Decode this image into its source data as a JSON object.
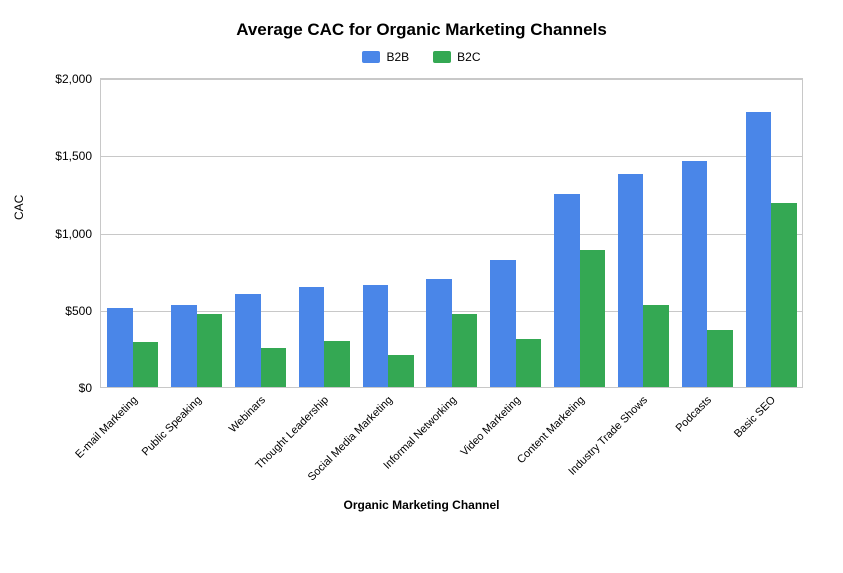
{
  "chart": {
    "type": "bar",
    "title": "Average CAC for Organic Marketing Channels",
    "title_fontsize": 17,
    "xlabel": "Organic Marketing Channel",
    "ylabel": "CAC",
    "label_fontsize": 12,
    "ylim": [
      0,
      2000
    ],
    "ytick_step": 500,
    "yticks": [
      "$0",
      "$500",
      "$1,000",
      "$1,500",
      "$2,000"
    ],
    "categories": [
      "E-mail Marketing",
      "Public Speaking",
      "Webinars",
      "Thought Leadership",
      "Social Media Marketing",
      "Informal Networking",
      "Video Marketing",
      "Content Marketing",
      "Industry Trade Shows",
      "Podcasts",
      "Basic SEO"
    ],
    "series": [
      {
        "name": "B2B",
        "color": "#4a86e8",
        "values": [
          510,
          530,
          600,
          650,
          660,
          700,
          820,
          1250,
          1380,
          1460,
          1780
        ]
      },
      {
        "name": "B2C",
        "color": "#34a853",
        "values": [
          290,
          470,
          250,
          300,
          210,
          470,
          310,
          890,
          530,
          370,
          1190
        ]
      }
    ],
    "background_color": "#ffffff",
    "grid_color": "#c8c8c8",
    "tick_fontsize": 12,
    "xtick_rotation_deg": -45,
    "bar_group_width_ratio": 0.8
  }
}
